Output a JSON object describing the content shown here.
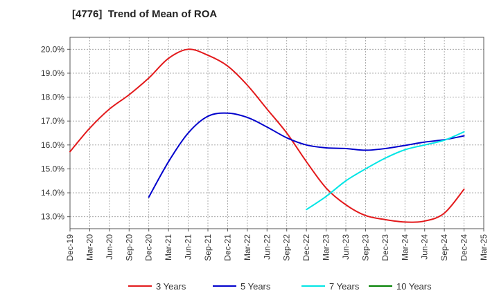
{
  "chart_data": {
    "type": "line",
    "title": "[4776]  Trend of Mean of ROA",
    "xlabel": "",
    "ylabel": "",
    "x_ticks": [
      "Dec-19",
      "Mar-20",
      "Jun-20",
      "Sep-20",
      "Dec-20",
      "Mar-21",
      "Jun-21",
      "Sep-21",
      "Dec-21",
      "Mar-22",
      "Jun-22",
      "Sep-22",
      "Dec-22",
      "Mar-23",
      "Jun-23",
      "Sep-23",
      "Dec-23",
      "Mar-24",
      "Jun-24",
      "Sep-24",
      "Dec-24",
      "Mar-25"
    ],
    "y_ticks": [
      "13.0%",
      "14.0%",
      "15.0%",
      "16.0%",
      "17.0%",
      "18.0%",
      "19.0%",
      "20.0%"
    ],
    "y_tick_values": [
      13,
      14,
      15,
      16,
      17,
      18,
      19,
      20
    ],
    "ylim": [
      12.5,
      20.5
    ],
    "grid": true,
    "legend_position": "bottom",
    "series": [
      {
        "name": "3 Years",
        "color": "#e31a1c",
        "x": [
          "Dec-19",
          "Mar-20",
          "Jun-20",
          "Sep-20",
          "Dec-20",
          "Mar-21",
          "Jun-21",
          "Sep-21",
          "Dec-21",
          "Mar-22",
          "Jun-22",
          "Sep-22",
          "Dec-22",
          "Mar-23",
          "Jun-23",
          "Sep-23",
          "Dec-23",
          "Mar-24",
          "Jun-24",
          "Sep-24",
          "Dec-24"
        ],
        "values": [
          15.72,
          16.7,
          17.5,
          18.1,
          18.8,
          19.62,
          20.0,
          19.75,
          19.3,
          18.5,
          17.5,
          16.5,
          15.3,
          14.2,
          13.5,
          13.05,
          12.88,
          12.78,
          12.82,
          13.15,
          14.15
        ]
      },
      {
        "name": "5 Years",
        "color": "#0000cc",
        "x": [
          "Dec-20",
          "Mar-21",
          "Jun-21",
          "Sep-21",
          "Dec-21",
          "Mar-22",
          "Jun-22",
          "Sep-22",
          "Dec-22",
          "Mar-23",
          "Jun-23",
          "Sep-23",
          "Dec-23",
          "Mar-24",
          "Jun-24",
          "Sep-24",
          "Dec-24"
        ],
        "values": [
          13.82,
          15.3,
          16.5,
          17.2,
          17.33,
          17.15,
          16.75,
          16.3,
          16.0,
          15.88,
          15.85,
          15.78,
          15.85,
          15.98,
          16.12,
          16.22,
          16.38
        ]
      },
      {
        "name": "7 Years",
        "color": "#00e5e5",
        "x": [
          "Dec-22",
          "Mar-23",
          "Jun-23",
          "Sep-23",
          "Dec-23",
          "Mar-24",
          "Jun-24",
          "Sep-24",
          "Dec-24"
        ],
        "values": [
          13.3,
          13.85,
          14.5,
          15.0,
          15.45,
          15.8,
          16.0,
          16.2,
          16.55
        ]
      },
      {
        "name": "10 Years",
        "color": "#008000",
        "x": [],
        "values": []
      }
    ]
  }
}
